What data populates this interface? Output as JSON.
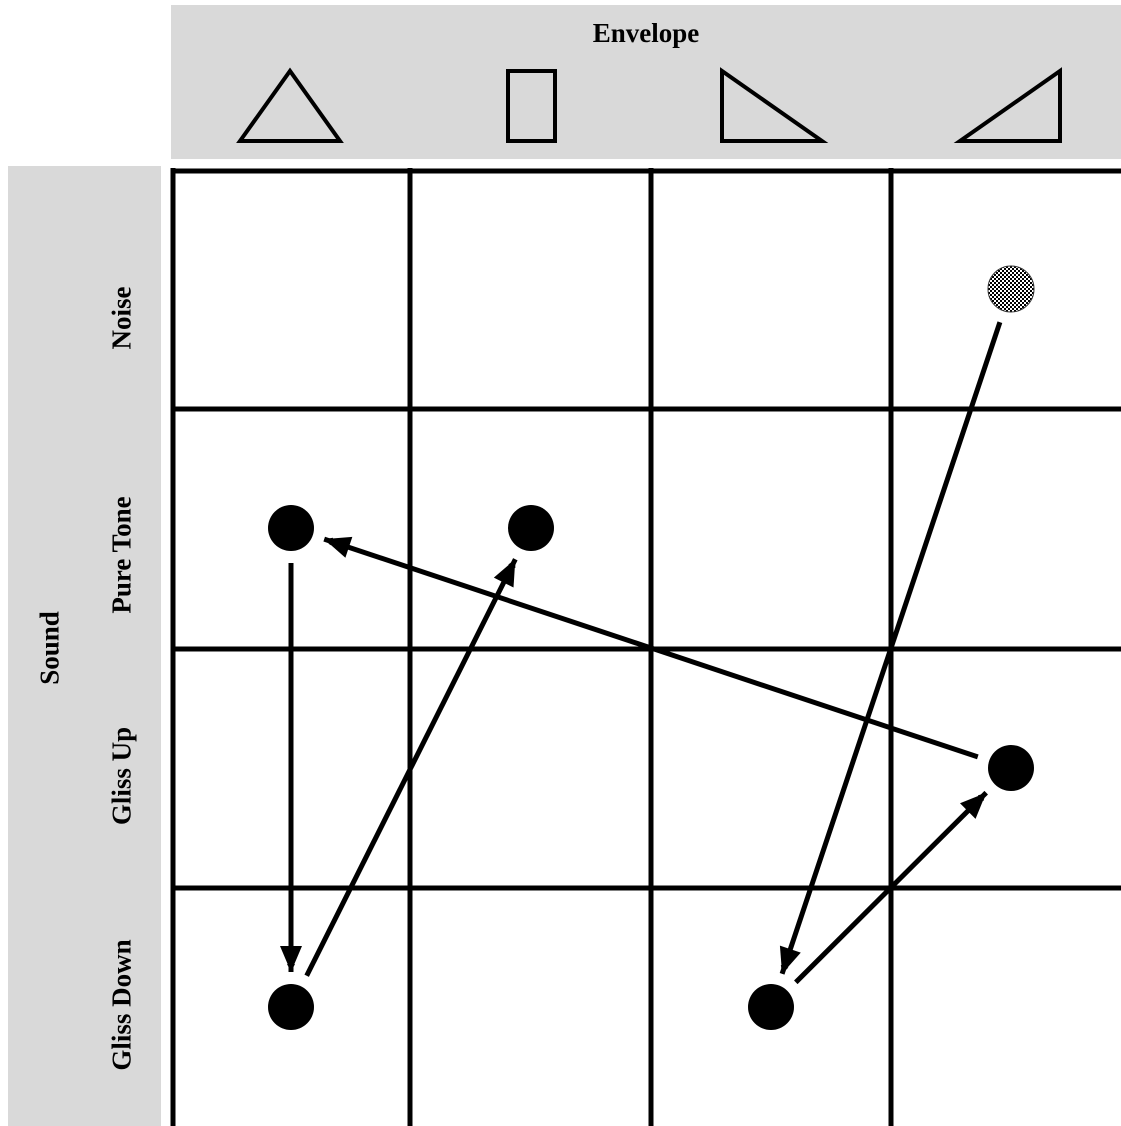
{
  "column_header": {
    "title": "Envelope",
    "envelopes": [
      {
        "name": "triangle-envelope-icon"
      },
      {
        "name": "rectangle-envelope-icon"
      },
      {
        "name": "ramp-down-envelope-icon"
      },
      {
        "name": "ramp-up-envelope-icon"
      }
    ]
  },
  "row_header": {
    "title": "Sound",
    "rows": [
      {
        "label": "Noise"
      },
      {
        "label": "Pure Tone"
      },
      {
        "label": "Gliss Up"
      },
      {
        "label": "Gliss Down"
      }
    ]
  },
  "nodes": [
    {
      "id": "n-noise-ramp-up",
      "row": 0,
      "col": 3,
      "fill": "checkered"
    },
    {
      "id": "n-tone-triangle",
      "row": 1,
      "col": 0,
      "fill": "solid"
    },
    {
      "id": "n-tone-rect",
      "row": 1,
      "col": 1,
      "fill": "solid"
    },
    {
      "id": "n-glissup-ramp-up",
      "row": 2,
      "col": 3,
      "fill": "solid"
    },
    {
      "id": "n-glissdown-triangle",
      "row": 3,
      "col": 0,
      "fill": "solid"
    },
    {
      "id": "n-glissdown-ramp-down",
      "row": 3,
      "col": 2,
      "fill": "solid"
    }
  ],
  "edges": [
    {
      "from": "n-noise-ramp-up",
      "to": "n-glissdown-ramp-down"
    },
    {
      "from": "n-glissdown-ramp-down",
      "to": "n-glissup-ramp-up"
    },
    {
      "from": "n-glissup-ramp-up",
      "to": "n-tone-triangle"
    },
    {
      "from": "n-tone-triangle",
      "to": "n-glissdown-triangle"
    },
    {
      "from": "n-glissdown-triangle",
      "to": "n-tone-rect"
    }
  ],
  "colors": {
    "panel": "#d9d9d9",
    "line": "#000000",
    "node": "#000000"
  }
}
